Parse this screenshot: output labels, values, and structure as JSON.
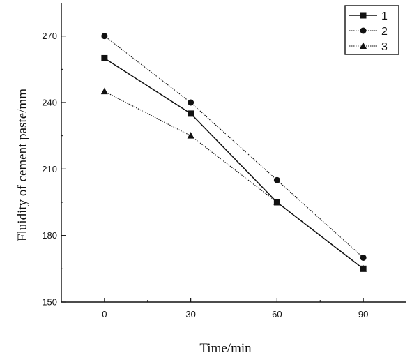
{
  "chart_data": {
    "type": "line",
    "xlabel": "Time/min",
    "ylabel": "Fluidity of cement paste/mm",
    "x": [
      0,
      30,
      60,
      90
    ],
    "xticks": [
      "0",
      "30",
      "60",
      "90"
    ],
    "yticks": [
      "150",
      "180",
      "210",
      "240",
      "270"
    ],
    "xlim": [
      -15,
      105
    ],
    "ylim": [
      150,
      285
    ],
    "grid": false,
    "legend_position": "top-right",
    "series": [
      {
        "name": "1",
        "marker": "square",
        "line_style": "solid",
        "values": [
          260,
          235,
          195,
          165
        ]
      },
      {
        "name": "2",
        "marker": "circle",
        "line_style": "dotted",
        "values": [
          270,
          240,
          205,
          170
        ]
      },
      {
        "name": "3",
        "marker": "triangle",
        "line_style": "dotted",
        "values": [
          245,
          225,
          195,
          165
        ]
      }
    ]
  }
}
